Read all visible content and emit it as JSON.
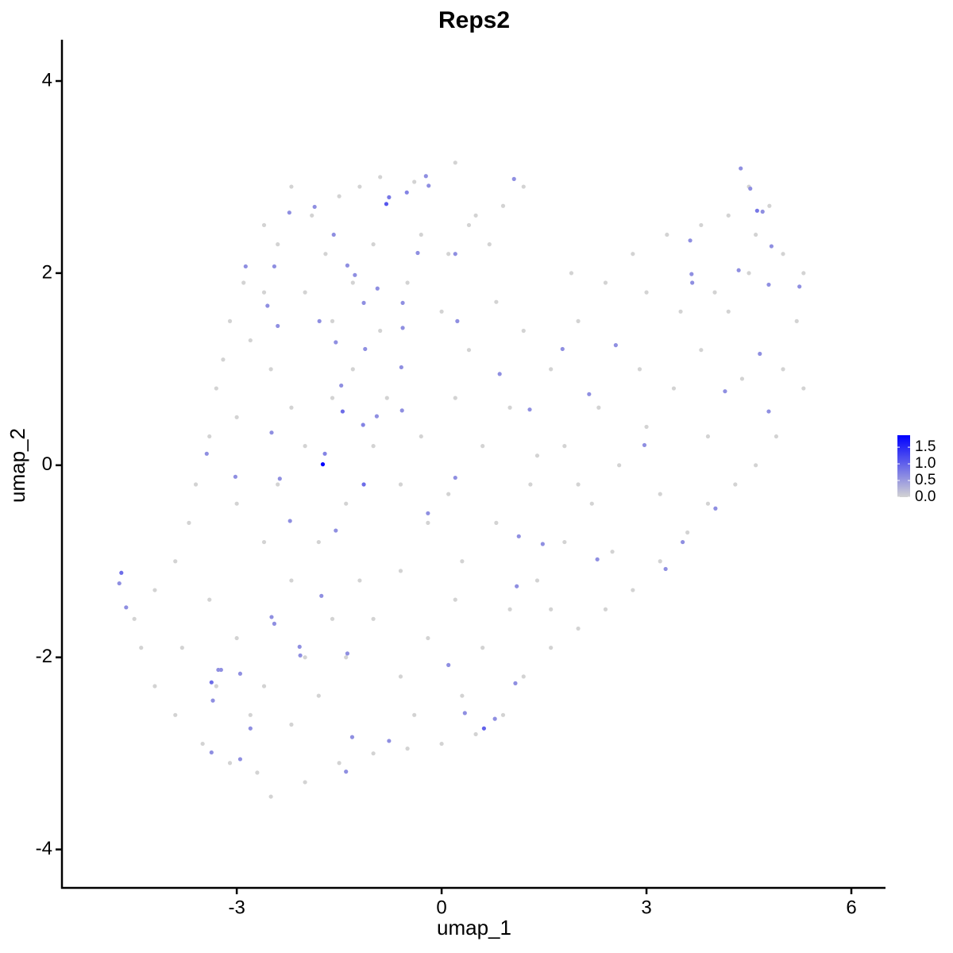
{
  "chart_data": {
    "type": "scatter",
    "title": "Reps2",
    "x_label": "umap_1",
    "y_label": "umap_2",
    "xlim": [
      -5.56,
      6.5
    ],
    "ylim": [
      -4.4,
      4.43
    ],
    "xticks": [
      -3,
      0,
      3,
      6
    ],
    "yticks": [
      -4,
      -2,
      0,
      2,
      4
    ],
    "grid": false,
    "color_scale": {
      "low": "#d3d3d3",
      "high": "#0000ff",
      "lim": [
        0,
        1.86
      ],
      "ticks": [
        {
          "value": 0,
          "label": "0.0"
        },
        {
          "value": 0.5,
          "label": "0.5"
        },
        {
          "value": 1,
          "label": "1.0"
        },
        {
          "value": 1.5,
          "label": "1.5"
        }
      ]
    },
    "points": [
      {
        "x": -2.6,
        "y": 2.5,
        "value": 0
      },
      {
        "x": -2.2,
        "y": 2.9,
        "value": 0
      },
      {
        "x": -1.9,
        "y": 2.6,
        "value": 0
      },
      {
        "x": -1.5,
        "y": 2.8,
        "value": 0
      },
      {
        "x": -1.2,
        "y": 2.9,
        "value": 0
      },
      {
        "x": -0.9,
        "y": 3.0,
        "value": 0
      },
      {
        "x": -0.4,
        "y": 2.95,
        "value": 0
      },
      {
        "x": 0.2,
        "y": 3.15,
        "value": 0
      },
      {
        "x": 0.5,
        "y": 2.6,
        "value": 0
      },
      {
        "x": 0.9,
        "y": 2.7,
        "value": 0
      },
      {
        "x": 1.2,
        "y": 2.9,
        "value": 0
      },
      {
        "x": 0.7,
        "y": 2.3,
        "value": 0
      },
      {
        "x": 0.4,
        "y": 2.5,
        "value": 0
      },
      {
        "x": -0.3,
        "y": 2.4,
        "value": 0
      },
      {
        "x": -1.0,
        "y": 2.3,
        "value": 0
      },
      {
        "x": -1.7,
        "y": 2.2,
        "value": 0
      },
      {
        "x": -2.4,
        "y": 2.3,
        "value": 0
      },
      {
        "x": -2.9,
        "y": 1.9,
        "value": 0
      },
      {
        "x": -3.1,
        "y": 1.5,
        "value": 0
      },
      {
        "x": -3.2,
        "y": 1.1,
        "value": 0
      },
      {
        "x": -3.3,
        "y": 0.8,
        "value": 0
      },
      {
        "x": -3.0,
        "y": 0.5,
        "value": 0
      },
      {
        "x": -3.4,
        "y": 0.3,
        "value": 0
      },
      {
        "x": -3.6,
        "y": -0.2,
        "value": 0
      },
      {
        "x": -2.8,
        "y": 1.3,
        "value": 0
      },
      {
        "x": -2.5,
        "y": 1.0,
        "value": 0
      },
      {
        "x": -2.0,
        "y": 1.8,
        "value": 0
      },
      {
        "x": -1.6,
        "y": 1.5,
        "value": 0
      },
      {
        "x": -1.3,
        "y": 1.0,
        "value": 0
      },
      {
        "x": -0.9,
        "y": 1.4,
        "value": 0
      },
      {
        "x": -0.5,
        "y": 1.9,
        "value": 0
      },
      {
        "x": 0.0,
        "y": 1.6,
        "value": 0
      },
      {
        "x": 0.4,
        "y": 1.2,
        "value": 0
      },
      {
        "x": 0.8,
        "y": 1.7,
        "value": 0
      },
      {
        "x": 1.2,
        "y": 1.4,
        "value": 0
      },
      {
        "x": 1.6,
        "y": 1.0,
        "value": 0
      },
      {
        "x": 2.0,
        "y": 1.5,
        "value": 0
      },
      {
        "x": 2.4,
        "y": 1.9,
        "value": 0
      },
      {
        "x": 2.8,
        "y": 2.2,
        "value": 0
      },
      {
        "x": 3.3,
        "y": 2.4,
        "value": 0
      },
      {
        "x": 3.8,
        "y": 2.5,
        "value": 0
      },
      {
        "x": 4.2,
        "y": 2.6,
        "value": 0
      },
      {
        "x": 4.6,
        "y": 2.4,
        "value": 0
      },
      {
        "x": 5.0,
        "y": 2.2,
        "value": 0
      },
      {
        "x": 5.3,
        "y": 2.0,
        "value": 0
      },
      {
        "x": 5.2,
        "y": 1.5,
        "value": 0
      },
      {
        "x": 5.0,
        "y": 1.0,
        "value": 0
      },
      {
        "x": 5.3,
        "y": 0.8,
        "value": 0
      },
      {
        "x": 4.9,
        "y": 0.3,
        "value": 0
      },
      {
        "x": 4.6,
        "y": 0.0,
        "value": 0
      },
      {
        "x": 4.3,
        "y": -0.2,
        "value": 0
      },
      {
        "x": 3.9,
        "y": -0.4,
        "value": 0
      },
      {
        "x": 3.6,
        "y": -0.7,
        "value": 0
      },
      {
        "x": 3.2,
        "y": -1.0,
        "value": 0
      },
      {
        "x": 2.8,
        "y": -1.3,
        "value": 0
      },
      {
        "x": 2.4,
        "y": -1.5,
        "value": 0
      },
      {
        "x": 2.0,
        "y": -1.7,
        "value": 0
      },
      {
        "x": 1.6,
        "y": -1.9,
        "value": 0
      },
      {
        "x": 1.2,
        "y": -2.2,
        "value": 0
      },
      {
        "x": 0.9,
        "y": -2.6,
        "value": 0
      },
      {
        "x": 0.5,
        "y": -2.8,
        "value": 0
      },
      {
        "x": 0.0,
        "y": -2.9,
        "value": 0
      },
      {
        "x": -0.5,
        "y": -2.95,
        "value": 0
      },
      {
        "x": -1.0,
        "y": -3.0,
        "value": 0
      },
      {
        "x": -1.5,
        "y": -3.1,
        "value": 0
      },
      {
        "x": -2.0,
        "y": -3.3,
        "value": 0
      },
      {
        "x": -2.5,
        "y": -3.45,
        "value": 0
      },
      {
        "x": -2.7,
        "y": -3.2,
        "value": 0
      },
      {
        "x": -3.1,
        "y": -3.1,
        "value": 0
      },
      {
        "x": -3.5,
        "y": -2.9,
        "value": 0
      },
      {
        "x": -3.9,
        "y": -2.6,
        "value": 0
      },
      {
        "x": -4.2,
        "y": -2.3,
        "value": 0
      },
      {
        "x": -4.4,
        "y": -1.9,
        "value": 0
      },
      {
        "x": -4.5,
        "y": -1.6,
        "value": 0
      },
      {
        "x": -4.2,
        "y": -1.3,
        "value": 0
      },
      {
        "x": -3.9,
        "y": -1.0,
        "value": 0
      },
      {
        "x": -3.7,
        "y": -0.6,
        "value": 0
      },
      {
        "x": -3.4,
        "y": -1.4,
        "value": 0
      },
      {
        "x": -3.0,
        "y": -1.8,
        "value": 0
      },
      {
        "x": -2.6,
        "y": -2.3,
        "value": 0
      },
      {
        "x": -2.2,
        "y": -2.7,
        "value": 0
      },
      {
        "x": -1.8,
        "y": -2.4,
        "value": 0
      },
      {
        "x": -1.4,
        "y": -2.0,
        "value": 0
      },
      {
        "x": -1.0,
        "y": -1.6,
        "value": 0
      },
      {
        "x": -0.6,
        "y": -2.2,
        "value": 0
      },
      {
        "x": -0.2,
        "y": -1.8,
        "value": 0
      },
      {
        "x": 0.2,
        "y": -1.4,
        "value": 0
      },
      {
        "x": 0.6,
        "y": -1.9,
        "value": 0
      },
      {
        "x": 1.0,
        "y": -1.5,
        "value": 0
      },
      {
        "x": 1.4,
        "y": -1.2,
        "value": 0
      },
      {
        "x": 1.8,
        "y": -0.8,
        "value": 0
      },
      {
        "x": 2.2,
        "y": -0.4,
        "value": 0
      },
      {
        "x": 2.6,
        "y": 0.0,
        "value": 0
      },
      {
        "x": 3.0,
        "y": 0.4,
        "value": 0
      },
      {
        "x": 3.4,
        "y": 0.8,
        "value": 0
      },
      {
        "x": 3.8,
        "y": 1.2,
        "value": 0
      },
      {
        "x": 4.2,
        "y": 1.6,
        "value": 0
      },
      {
        "x": 4.5,
        "y": 2.0,
        "value": 0
      },
      {
        "x": 3.5,
        "y": 1.6,
        "value": 0
      },
      {
        "x": 2.9,
        "y": 1.0,
        "value": 0
      },
      {
        "x": 2.3,
        "y": 0.6,
        "value": 0
      },
      {
        "x": 1.8,
        "y": 0.2,
        "value": 0
      },
      {
        "x": 1.3,
        "y": -0.2,
        "value": 0
      },
      {
        "x": 0.8,
        "y": -0.6,
        "value": 0
      },
      {
        "x": 0.3,
        "y": -1.0,
        "value": 0
      },
      {
        "x": -0.2,
        "y": -0.6,
        "value": 0
      },
      {
        "x": -0.6,
        "y": -0.2,
        "value": 0
      },
      {
        "x": -1.0,
        "y": 0.2,
        "value": 0
      },
      {
        "x": -1.4,
        "y": -0.4,
        "value": 0
      },
      {
        "x": -1.8,
        "y": -0.8,
        "value": 0
      },
      {
        "x": -2.2,
        "y": -1.2,
        "value": 0
      },
      {
        "x": -2.6,
        "y": -0.8,
        "value": 0
      },
      {
        "x": -3.0,
        "y": -0.4,
        "value": 0
      },
      {
        "x": -2.4,
        "y": -0.2,
        "value": 0
      },
      {
        "x": -2.0,
        "y": 0.2,
        "value": 0
      },
      {
        "x": -1.6,
        "y": 0.7,
        "value": 0
      },
      {
        "x": -2.2,
        "y": 0.6,
        "value": 0
      },
      {
        "x": -0.8,
        "y": 0.7,
        "value": 0
      },
      {
        "x": -0.3,
        "y": 0.3,
        "value": 0
      },
      {
        "x": 0.2,
        "y": 0.7,
        "value": 0
      },
      {
        "x": 0.6,
        "y": 0.2,
        "value": 0
      },
      {
        "x": 1.0,
        "y": 0.6,
        "value": 0
      },
      {
        "x": 1.4,
        "y": 0.1,
        "value": 0
      },
      {
        "x": 2.0,
        "y": -0.2,
        "value": 0
      },
      {
        "x": 0.1,
        "y": -0.3,
        "value": 0
      },
      {
        "x": -0.6,
        "y": -1.1,
        "value": 0
      },
      {
        "x": -1.2,
        "y": -1.2,
        "value": 0
      },
      {
        "x": -1.6,
        "y": -1.6,
        "value": 0
      },
      {
        "x": -2.8,
        "y": -2.6,
        "value": 0
      },
      {
        "x": -3.3,
        "y": -2.3,
        "value": 0
      },
      {
        "x": -3.8,
        "y": -1.9,
        "value": 0
      },
      {
        "x": -2.0,
        "y": -2.0,
        "value": 0
      },
      {
        "x": 0.3,
        "y": -2.4,
        "value": 0
      },
      {
        "x": -0.4,
        "y": -2.6,
        "value": 0
      },
      {
        "x": 1.6,
        "y": -1.5,
        "value": 0
      },
      {
        "x": 2.5,
        "y": -0.9,
        "value": 0
      },
      {
        "x": 3.2,
        "y": -0.3,
        "value": 0
      },
      {
        "x": 3.9,
        "y": 0.3,
        "value": 0
      },
      {
        "x": 4.4,
        "y": 0.9,
        "value": 0
      },
      {
        "x": 4.0,
        "y": 1.8,
        "value": 0
      },
      {
        "x": 3.0,
        "y": 1.8,
        "value": 0
      },
      {
        "x": 1.9,
        "y": 2.0,
        "value": 0
      },
      {
        "x": 0.1,
        "y": 2.2,
        "value": 0
      },
      {
        "x": -1.3,
        "y": 1.9,
        "value": 0
      },
      {
        "x": -2.6,
        "y": 1.8,
        "value": 0
      },
      {
        "x": 4.8,
        "y": 2.7,
        "value": 0
      },
      {
        "x": 4.5,
        "y": 2.9,
        "value": 0
      },
      {
        "x": -4.69,
        "y": -1.12,
        "value": 0.9
      },
      {
        "x": -4.72,
        "y": -1.23,
        "value": 0.6
      },
      {
        "x": -4.62,
        "y": -1.48,
        "value": 0.6
      },
      {
        "x": -3.44,
        "y": 0.12,
        "value": 0.6
      },
      {
        "x": -1.71,
        "y": 0.12,
        "value": 0.7
      },
      {
        "x": -2.23,
        "y": 2.63,
        "value": 0.6
      },
      {
        "x": -1.86,
        "y": 2.69,
        "value": 0.6
      },
      {
        "x": -0.81,
        "y": 2.72,
        "value": 1.1
      },
      {
        "x": -0.77,
        "y": 2.79,
        "value": 0.8
      },
      {
        "x": -0.51,
        "y": 2.84,
        "value": 0.7
      },
      {
        "x": -0.23,
        "y": 3.01,
        "value": 0.6
      },
      {
        "x": -0.19,
        "y": 2.91,
        "value": 0.6
      },
      {
        "x": 1.06,
        "y": 2.98,
        "value": 0.6
      },
      {
        "x": -1.58,
        "y": 2.4,
        "value": 0.6
      },
      {
        "x": -2.87,
        "y": 2.07,
        "value": 0.6
      },
      {
        "x": -2.45,
        "y": 2.07,
        "value": 0.6
      },
      {
        "x": -1.38,
        "y": 2.08,
        "value": 0.6
      },
      {
        "x": -1.27,
        "y": 1.98,
        "value": 0.6
      },
      {
        "x": -0.35,
        "y": 2.21,
        "value": 0.6
      },
      {
        "x": 0.2,
        "y": 2.2,
        "value": 0.6
      },
      {
        "x": -0.94,
        "y": 1.84,
        "value": 0.6
      },
      {
        "x": -0.57,
        "y": 1.69,
        "value": 0.6
      },
      {
        "x": -1.14,
        "y": 1.69,
        "value": 0.6
      },
      {
        "x": -2.55,
        "y": 1.66,
        "value": 0.6
      },
      {
        "x": -2.4,
        "y": 1.45,
        "value": 0.6
      },
      {
        "x": -1.79,
        "y": 1.5,
        "value": 0.6
      },
      {
        "x": -0.57,
        "y": 1.43,
        "value": 0.6
      },
      {
        "x": 0.23,
        "y": 1.5,
        "value": 0.6
      },
      {
        "x": -1.55,
        "y": 1.28,
        "value": 0.6
      },
      {
        "x": -1.12,
        "y": 1.21,
        "value": 0.6
      },
      {
        "x": -0.59,
        "y": 1.02,
        "value": 0.6
      },
      {
        "x": -1.47,
        "y": 0.83,
        "value": 0.6
      },
      {
        "x": -1.45,
        "y": 0.56,
        "value": 0.9
      },
      {
        "x": -1.15,
        "y": 0.42,
        "value": 0.7
      },
      {
        "x": -0.95,
        "y": 0.51,
        "value": 0.6
      },
      {
        "x": -0.58,
        "y": 0.57,
        "value": 0.6
      },
      {
        "x": -2.49,
        "y": 0.34,
        "value": 0.6
      },
      {
        "x": -3.02,
        "y": -0.12,
        "value": 0.6
      },
      {
        "x": -2.37,
        "y": -0.14,
        "value": 0.6
      },
      {
        "x": -1.14,
        "y": -0.2,
        "value": 0.9
      },
      {
        "x": -2.22,
        "y": -0.58,
        "value": 0.6
      },
      {
        "x": -1.55,
        "y": -0.68,
        "value": 0.6
      },
      {
        "x": -0.2,
        "y": -0.5,
        "value": 0.6
      },
      {
        "x": 0.2,
        "y": -0.13,
        "value": 0.6
      },
      {
        "x": 1.13,
        "y": -0.74,
        "value": 0.6
      },
      {
        "x": 1.48,
        "y": -0.82,
        "value": 0.6
      },
      {
        "x": 2.28,
        "y": -0.98,
        "value": 0.6
      },
      {
        "x": 1.1,
        "y": -1.26,
        "value": 0.6
      },
      {
        "x": 2.97,
        "y": 0.21,
        "value": 0.6
      },
      {
        "x": 4.01,
        "y": -0.45,
        "value": 0.6
      },
      {
        "x": 3.53,
        "y": -0.8,
        "value": 0.6
      },
      {
        "x": 3.28,
        "y": -1.08,
        "value": 0.6
      },
      {
        "x": 0.85,
        "y": 0.95,
        "value": 0.6
      },
      {
        "x": 1.29,
        "y": 0.58,
        "value": 0.6
      },
      {
        "x": 1.77,
        "y": 1.21,
        "value": 0.6
      },
      {
        "x": 2.16,
        "y": 0.74,
        "value": 0.6
      },
      {
        "x": 2.55,
        "y": 1.25,
        "value": 0.6
      },
      {
        "x": 3.64,
        "y": 2.34,
        "value": 0.6
      },
      {
        "x": 3.66,
        "y": 1.99,
        "value": 0.6
      },
      {
        "x": 3.67,
        "y": 1.9,
        "value": 0.6
      },
      {
        "x": 4.35,
        "y": 2.03,
        "value": 0.6
      },
      {
        "x": 4.38,
        "y": 3.09,
        "value": 0.6
      },
      {
        "x": 4.52,
        "y": 2.88,
        "value": 0.6
      },
      {
        "x": 4.62,
        "y": 2.65,
        "value": 0.8
      },
      {
        "x": 4.7,
        "y": 2.64,
        "value": 0.6
      },
      {
        "x": 4.83,
        "y": 2.28,
        "value": 0.6
      },
      {
        "x": 4.79,
        "y": 1.88,
        "value": 0.6
      },
      {
        "x": 5.24,
        "y": 1.86,
        "value": 0.6
      },
      {
        "x": 4.66,
        "y": 1.16,
        "value": 0.6
      },
      {
        "x": 4.15,
        "y": 0.77,
        "value": 0.6
      },
      {
        "x": 4.79,
        "y": 0.56,
        "value": 0.6
      },
      {
        "x": -2.49,
        "y": -1.58,
        "value": 0.6
      },
      {
        "x": -2.45,
        "y": -1.65,
        "value": 0.6
      },
      {
        "x": -2.08,
        "y": -1.89,
        "value": 0.6
      },
      {
        "x": -2.07,
        "y": -1.98,
        "value": 0.6
      },
      {
        "x": -1.38,
        "y": -1.96,
        "value": 0.6
      },
      {
        "x": -1.76,
        "y": -1.36,
        "value": 0.6
      },
      {
        "x": -3.23,
        "y": -2.13,
        "value": 0.6
      },
      {
        "x": -3.27,
        "y": -2.13,
        "value": 0.6
      },
      {
        "x": -2.95,
        "y": -2.17,
        "value": 0.6
      },
      {
        "x": -3.37,
        "y": -2.26,
        "value": 0.9
      },
      {
        "x": -3.35,
        "y": -2.45,
        "value": 0.6
      },
      {
        "x": -2.8,
        "y": -2.74,
        "value": 0.6
      },
      {
        "x": -3.37,
        "y": -2.99,
        "value": 0.6
      },
      {
        "x": -2.95,
        "y": -3.06,
        "value": 0.6
      },
      {
        "x": -1.4,
        "y": -3.19,
        "value": 0.6
      },
      {
        "x": -1.31,
        "y": -2.83,
        "value": 0.6
      },
      {
        "x": -0.77,
        "y": -2.87,
        "value": 0.6
      },
      {
        "x": 0.1,
        "y": -2.08,
        "value": 0.6
      },
      {
        "x": 0.34,
        "y": -2.58,
        "value": 0.6
      },
      {
        "x": 0.62,
        "y": -2.74,
        "value": 1.0
      },
      {
        "x": 0.78,
        "y": -2.64,
        "value": 0.6
      },
      {
        "x": 1.08,
        "y": -2.27,
        "value": 0.6
      },
      {
        "x": -1.74,
        "y": 0.01,
        "value": 1.86
      }
    ]
  }
}
